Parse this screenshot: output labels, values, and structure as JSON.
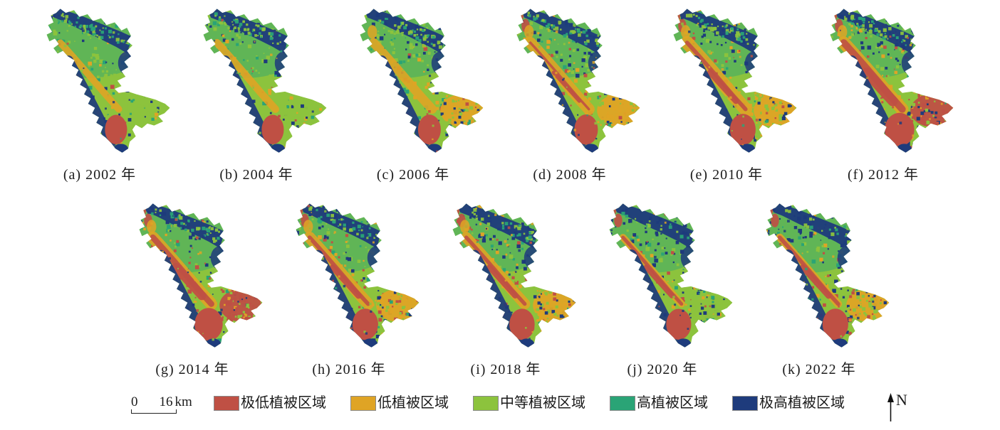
{
  "figure": {
    "panels": [
      {
        "key": "a",
        "year": "2002",
        "label": "(a) 2002 年",
        "row": 1,
        "wing_class": "medium",
        "estimated_class_share": {
          "extremely_low": 0.05,
          "low": 0.08,
          "medium": 0.48,
          "high": 0.16,
          "extremely_high": 0.23
        }
      },
      {
        "key": "b",
        "year": "2004",
        "label": "(b) 2004 年",
        "row": 1,
        "wing_class": "medium",
        "estimated_class_share": {
          "extremely_low": 0.05,
          "low": 0.1,
          "medium": 0.48,
          "high": 0.13,
          "extremely_high": 0.24
        }
      },
      {
        "key": "c",
        "year": "2006",
        "label": "(c) 2006 年",
        "row": 1,
        "wing_class": "low",
        "estimated_class_share": {
          "extremely_low": 0.07,
          "low": 0.15,
          "medium": 0.44,
          "high": 0.1,
          "extremely_high": 0.24
        }
      },
      {
        "key": "d",
        "year": "2008",
        "label": "(d) 2008 年",
        "row": 1,
        "wing_class": "low",
        "estimated_class_share": {
          "extremely_low": 0.09,
          "low": 0.22,
          "medium": 0.37,
          "high": 0.08,
          "extremely_high": 0.24
        }
      },
      {
        "key": "e",
        "year": "2010",
        "label": "(e) 2010 年",
        "row": 1,
        "wing_class": "low",
        "estimated_class_share": {
          "extremely_low": 0.15,
          "low": 0.27,
          "medium": 0.28,
          "high": 0.06,
          "extremely_high": 0.24
        }
      },
      {
        "key": "f",
        "year": "2012",
        "label": "(f) 2012 年",
        "row": 1,
        "wing_class": "extremely_low",
        "estimated_class_share": {
          "extremely_low": 0.26,
          "low": 0.25,
          "medium": 0.19,
          "high": 0.05,
          "extremely_high": 0.25
        }
      },
      {
        "key": "g",
        "year": "2014",
        "label": "(g) 2014 年",
        "row": 2,
        "wing_class": "extremely_low",
        "estimated_class_share": {
          "extremely_low": 0.22,
          "low": 0.23,
          "medium": 0.21,
          "high": 0.06,
          "extremely_high": 0.28
        }
      },
      {
        "key": "h",
        "year": "2016",
        "label": "(h) 2016 年",
        "row": 2,
        "wing_class": "low",
        "estimated_class_share": {
          "extremely_low": 0.15,
          "low": 0.22,
          "medium": 0.25,
          "high": 0.07,
          "extremely_high": 0.31
        }
      },
      {
        "key": "i",
        "year": "2018",
        "label": "(i) 2018 年",
        "row": 2,
        "wing_class": "low",
        "estimated_class_share": {
          "extremely_low": 0.14,
          "low": 0.2,
          "medium": 0.26,
          "high": 0.08,
          "extremely_high": 0.32
        }
      },
      {
        "key": "j",
        "year": "2020",
        "label": "(j) 2020 年",
        "row": 2,
        "wing_class": "medium",
        "estimated_class_share": {
          "extremely_low": 0.13,
          "low": 0.09,
          "medium": 0.28,
          "high": 0.1,
          "extremely_high": 0.4
        }
      },
      {
        "key": "k",
        "year": "2022",
        "label": "(k) 2022 年",
        "row": 2,
        "wing_class": "mixed",
        "estimated_class_share": {
          "extremely_low": 0.15,
          "low": 0.11,
          "medium": 0.25,
          "high": 0.09,
          "extremely_high": 0.4
        }
      }
    ],
    "legend": {
      "items": [
        {
          "class": "extremely_low",
          "label": "极低植被区域",
          "color": "#bf5044"
        },
        {
          "class": "low",
          "label": "低植被区域",
          "color": "#dfa425"
        },
        {
          "class": "medium",
          "label": "中等植被区域",
          "color": "#8cc33d"
        },
        {
          "class": "high",
          "label": "高植被区域",
          "color": "#2aa476"
        },
        {
          "class": "extremely_high",
          "label": "极高植被区域",
          "color": "#1e3b7c"
        }
      ]
    },
    "scale_bar": {
      "zero": "0",
      "distance": "16",
      "unit": "km"
    },
    "north_label": "N"
  }
}
